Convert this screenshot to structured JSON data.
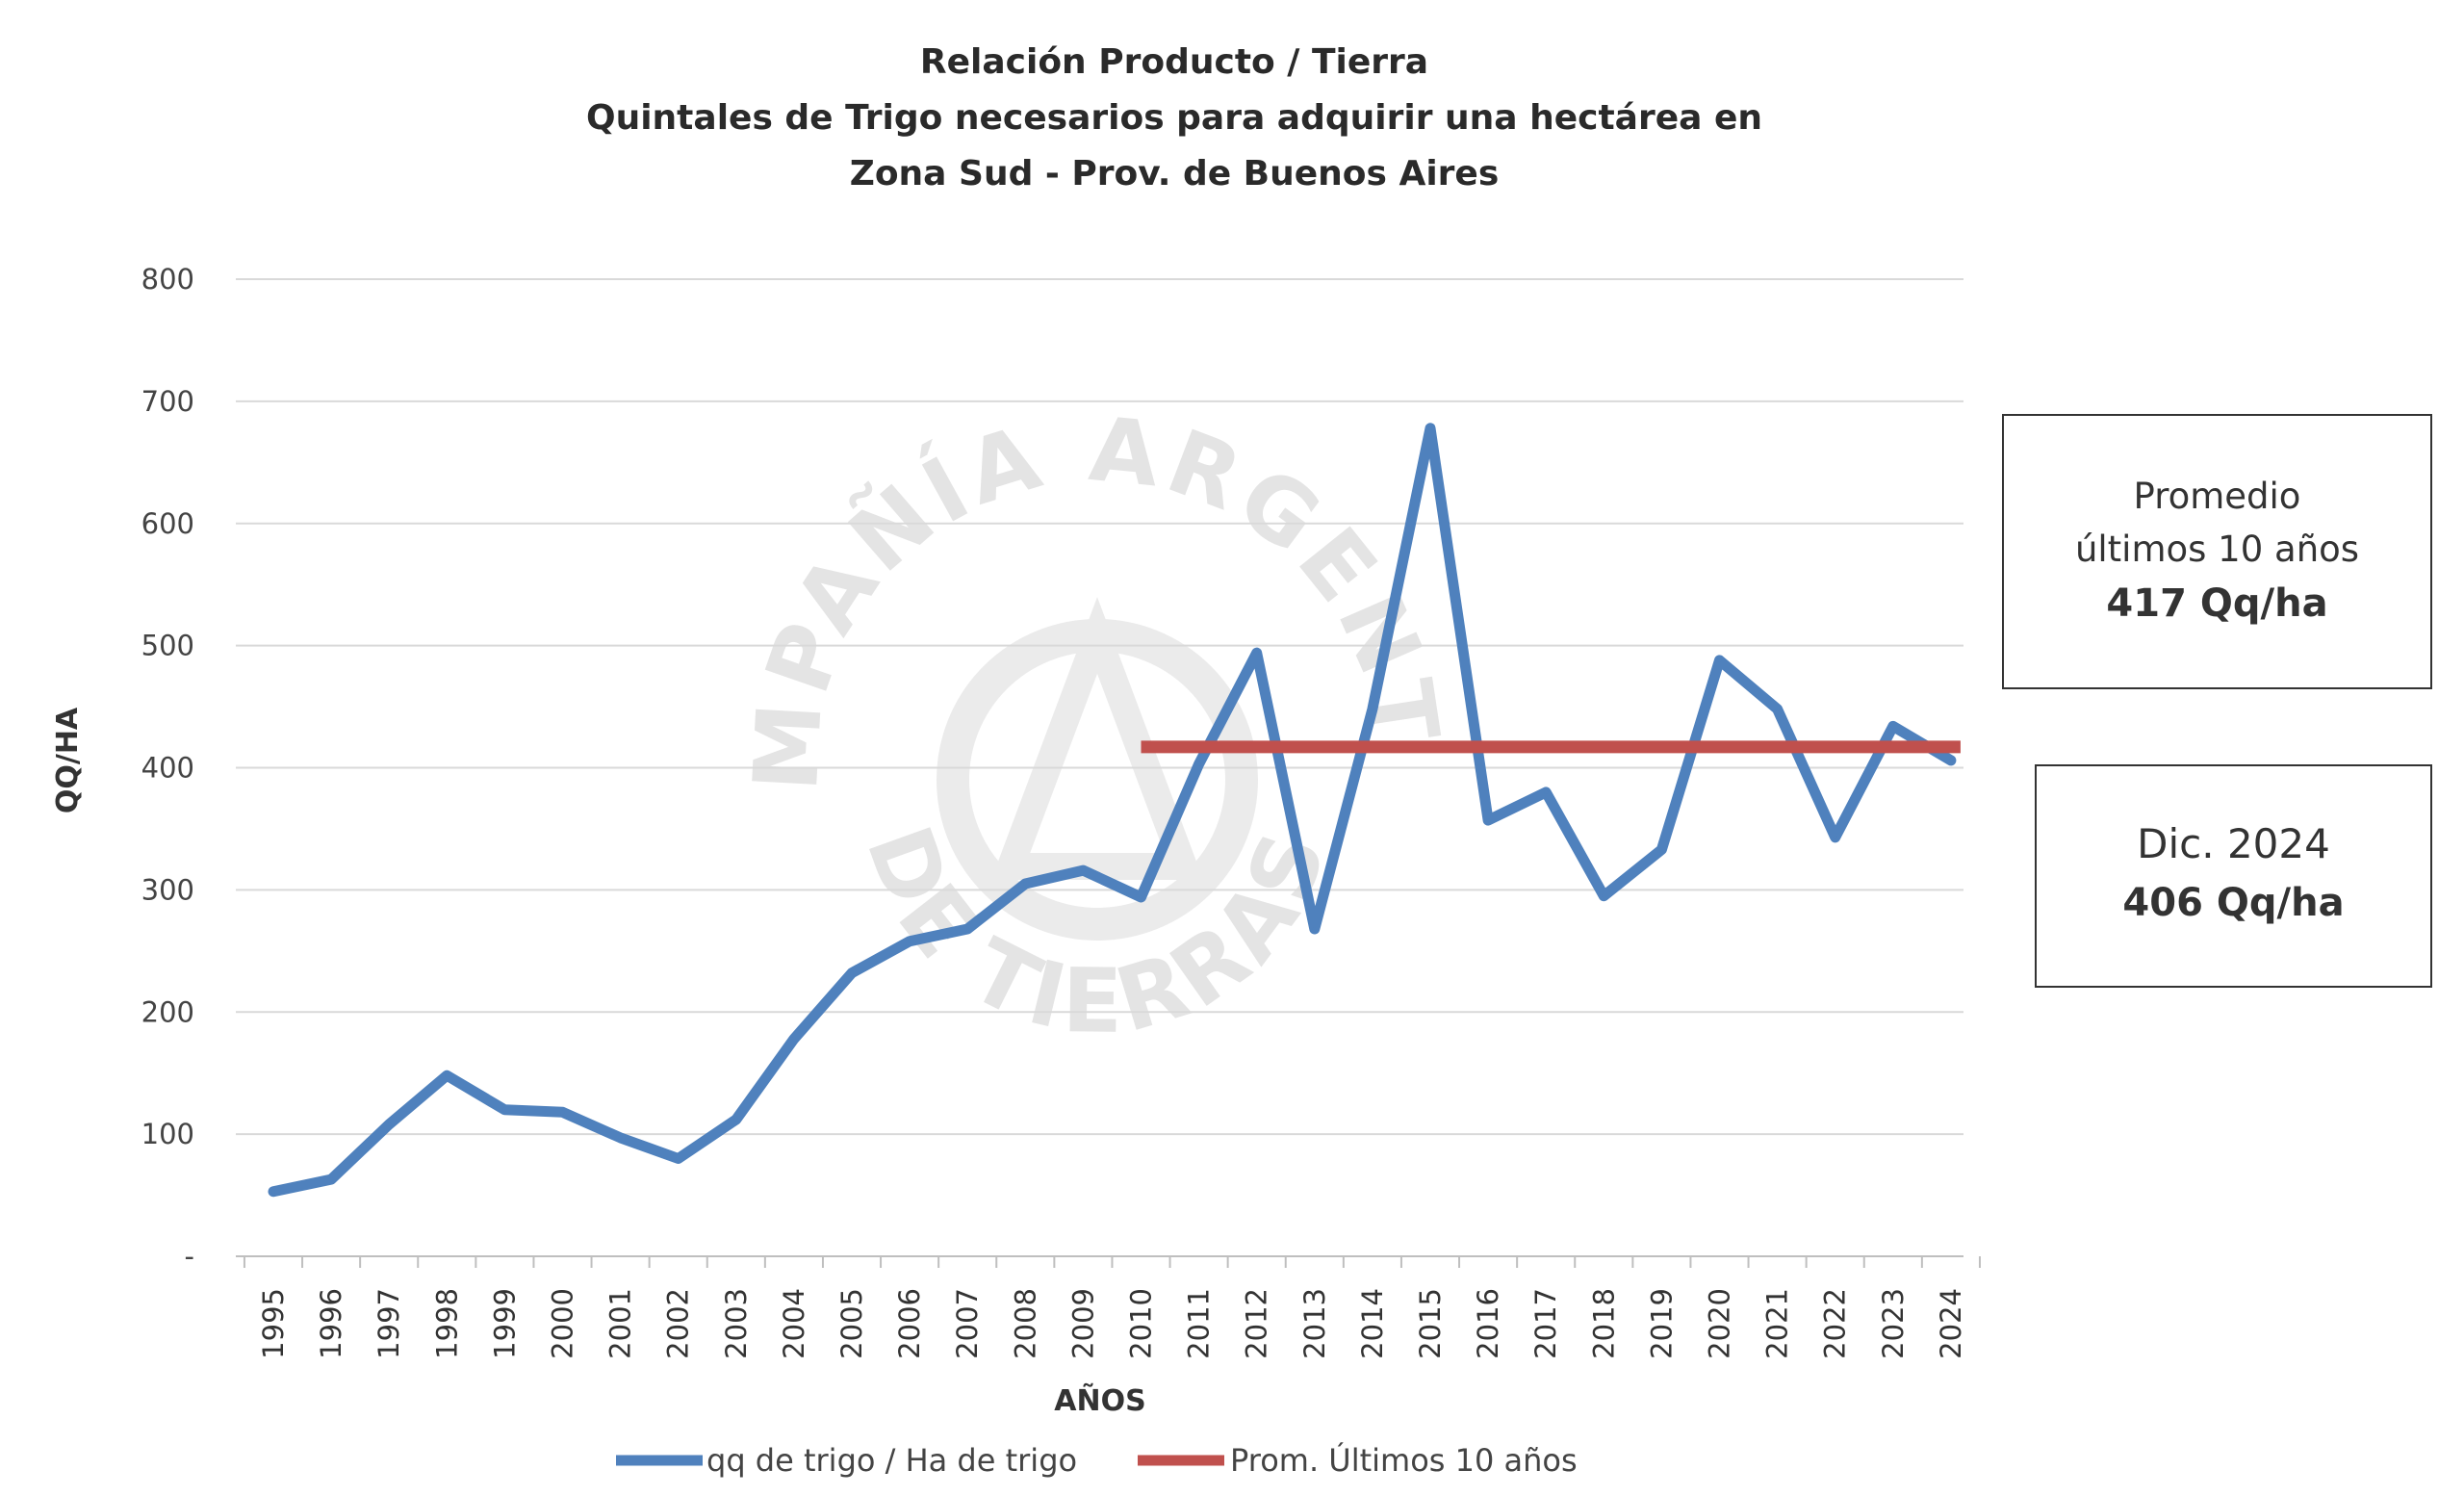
{
  "chart_data": {
    "type": "line",
    "title_lines": [
      "Relación Producto / Tierra",
      "Quintales de Trigo necesarios para adquirir una hectárea en",
      "Zona Sud - Prov. de Buenos Aires"
    ],
    "xlabel": "AÑOS",
    "ylabel": "QQ/HA",
    "ylim": [
      0,
      800
    ],
    "y_ticks": [
      "-",
      "100",
      "200",
      "300",
      "400",
      "500",
      "600",
      "700",
      "800"
    ],
    "y_tick_values": [
      0,
      100,
      200,
      300,
      400,
      500,
      600,
      700,
      800
    ],
    "grid": true,
    "categories": [
      "1995",
      "1996",
      "1997",
      "1998",
      "1999",
      "2000",
      "2001",
      "2002",
      "2003",
      "2004",
      "2005",
      "2006",
      "2007",
      "2008",
      "2009",
      "2010",
      "2011",
      "2012",
      "2013",
      "2014",
      "2015",
      "2016",
      "2017",
      "2018",
      "2019",
      "2020",
      "2021",
      "2022",
      "2023",
      "2024"
    ],
    "series": [
      {
        "name": "qq de trigo / Ha de trigo",
        "color": "#4F81BD",
        "values": [
          53,
          63,
          108,
          148,
          120,
          118,
          97,
          80,
          112,
          178,
          232,
          258,
          268,
          305,
          316,
          294,
          403,
          494,
          268,
          448,
          678,
          357,
          380,
          295,
          333,
          488,
          448,
          343,
          434,
          406
        ]
      },
      {
        "name": "Prom. Últimos 10 años",
        "color": "#C0504D",
        "x_range": [
          "2010",
          "2024"
        ],
        "value": 417
      }
    ],
    "legend_position": "bottom",
    "annotations": [
      {
        "lines": [
          "Promedio",
          "últimos 10 años",
          "417 Qq/ha"
        ]
      },
      {
        "lines": [
          "Dic. 2024",
          "406 Qq/ha"
        ]
      }
    ]
  },
  "watermark": {
    "text_top": "COMPAÑÍA ARGENTINA",
    "text_bottom": "DE TIERRAS"
  },
  "colors": {
    "grid": "#d9d9d9",
    "axis": "#bfbfbf"
  }
}
